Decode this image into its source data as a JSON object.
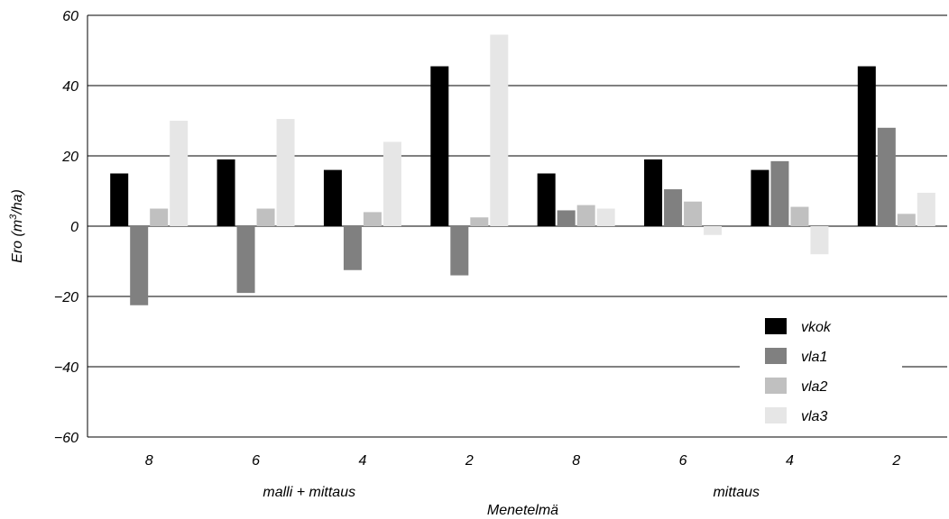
{
  "chart_data": {
    "type": "bar",
    "ylabel_main": "Ero (m",
    "ylabel_sup": "3",
    "ylabel_tail": "/ha)",
    "xlabel": "Menetelmä",
    "ylim": [
      -60,
      60
    ],
    "yticks": [
      60,
      40,
      20,
      0,
      -20,
      -40,
      -60
    ],
    "ytick_labels": [
      "60",
      "40",
      "20",
      "0",
      "−20",
      "−40",
      "−60"
    ],
    "grid": true,
    "legend_position": "bottom-right",
    "groups": [
      {
        "label": "malli + mittaus",
        "categories": [
          "8",
          "6",
          "4",
          "2"
        ]
      },
      {
        "label": "mittaus",
        "categories": [
          "8",
          "6",
          "4",
          "2"
        ]
      }
    ],
    "categories": [
      "8",
      "6",
      "4",
      "2",
      "8",
      "6",
      "4",
      "2"
    ],
    "series": [
      {
        "name": "vkok",
        "color": "#000000",
        "values": [
          15,
          19,
          16,
          45.5,
          15,
          19,
          16,
          45.5
        ]
      },
      {
        "name": "vla1",
        "color": "#808080",
        "values": [
          -22.5,
          -19,
          -12.5,
          -14,
          4.5,
          10.5,
          18.5,
          28
        ]
      },
      {
        "name": "vla2",
        "color": "#c0c0c0",
        "values": [
          5,
          5,
          4,
          2.5,
          6,
          7,
          5.5,
          3.5
        ]
      },
      {
        "name": "vla3",
        "color": "#e6e6e6",
        "values": [
          30,
          30.5,
          24,
          54.5,
          5,
          -2.5,
          -8,
          9.5
        ]
      }
    ]
  }
}
